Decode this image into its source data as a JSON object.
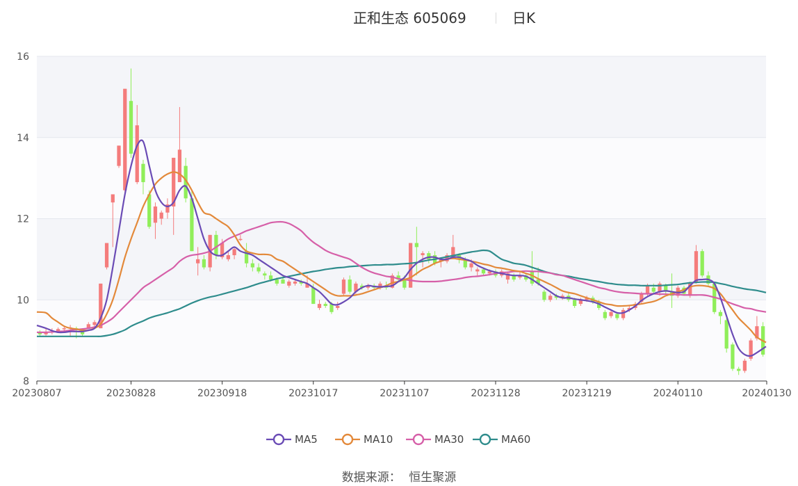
{
  "header": {
    "title": "正和生态 605069",
    "period": "日K"
  },
  "footer": {
    "source_label": "数据来源：",
    "source_value": "恒生聚源"
  },
  "chart_data": {
    "type": "candlestick",
    "title": "正和生态 605069",
    "period": "日K",
    "ylim": [
      8,
      16
    ],
    "yticks": [
      8,
      10,
      12,
      14,
      16
    ],
    "xticks": [
      "20230807",
      "20230828",
      "20230918",
      "20231017",
      "20231107",
      "20231128",
      "20231219",
      "20240110",
      "20240130"
    ],
    "xtick_index": [
      0,
      15,
      30,
      45,
      60,
      75,
      90,
      105,
      119
    ],
    "grid": true,
    "legend_position": "bottom",
    "up_color": "#f47c7c",
    "down_color": "#90ee5a",
    "candles": [
      [
        9.2,
        9.15,
        9.25,
        9.1
      ],
      [
        9.15,
        9.2,
        9.3,
        9.12
      ],
      [
        9.2,
        9.22,
        9.3,
        9.15
      ],
      [
        9.22,
        9.28,
        9.32,
        9.2
      ],
      [
        9.28,
        9.3,
        9.35,
        9.22
      ],
      [
        9.3,
        9.32,
        9.38,
        9.1
      ],
      [
        9.3,
        9.25,
        9.34,
        9.05
      ],
      [
        9.28,
        9.15,
        9.3,
        9.1
      ],
      [
        9.3,
        9.4,
        9.45,
        9.3
      ],
      [
        9.38,
        9.45,
        9.5,
        9.34
      ],
      [
        9.3,
        10.4,
        10.4,
        9.3
      ],
      [
        10.8,
        11.4,
        11.4,
        10.75
      ],
      [
        12.4,
        12.6,
        12.6,
        11.3
      ],
      [
        13.3,
        13.8,
        13.8,
        13.25
      ],
      [
        12.7,
        15.2,
        15.2,
        12.6
      ],
      [
        14.9,
        13.6,
        15.7,
        13.5
      ],
      [
        12.9,
        14.3,
        14.8,
        12.85
      ],
      [
        13.35,
        12.9,
        13.45,
        12.6
      ],
      [
        12.6,
        11.8,
        12.7,
        11.75
      ],
      [
        11.9,
        12.3,
        12.4,
        11.5
      ],
      [
        12.0,
        12.15,
        12.2,
        11.85
      ],
      [
        12.15,
        12.35,
        12.5,
        12.0
      ],
      [
        12.3,
        13.5,
        13.5,
        11.6
      ],
      [
        12.9,
        13.7,
        14.75,
        12.9
      ],
      [
        13.3,
        12.5,
        13.5,
        12.4
      ],
      [
        12.5,
        11.2,
        12.7,
        11.2
      ],
      [
        10.9,
        11.0,
        11.3,
        10.6
      ],
      [
        11.0,
        10.8,
        11.1,
        10.75
      ],
      [
        10.8,
        11.6,
        11.6,
        10.7
      ],
      [
        11.6,
        11.1,
        11.7,
        11.0
      ],
      [
        11.05,
        11.4,
        11.5,
        11.0
      ],
      [
        11.0,
        11.1,
        11.2,
        10.95
      ],
      [
        11.1,
        11.25,
        11.3,
        11.0
      ],
      [
        11.5,
        11.5,
        11.6,
        11.45
      ],
      [
        11.2,
        10.9,
        11.4,
        10.8
      ],
      [
        10.9,
        10.8,
        11.0,
        10.7
      ],
      [
        10.8,
        10.7,
        10.9,
        10.65
      ],
      [
        10.65,
        10.6,
        10.7,
        10.5
      ],
      [
        10.6,
        10.5,
        10.7,
        10.45
      ],
      [
        10.5,
        10.4,
        10.55,
        10.35
      ],
      [
        10.5,
        10.4,
        10.6,
        10.4
      ],
      [
        10.35,
        10.45,
        10.5,
        10.3
      ],
      [
        10.4,
        10.45,
        10.5,
        10.35
      ],
      [
        10.45,
        10.4,
        10.5,
        10.35
      ],
      [
        10.3,
        10.4,
        10.6,
        10.3
      ],
      [
        10.3,
        9.9,
        10.4,
        9.9
      ],
      [
        9.8,
        9.9,
        10.0,
        9.75
      ],
      [
        9.9,
        9.85,
        9.95,
        9.8
      ],
      [
        9.9,
        9.7,
        9.95,
        9.65
      ],
      [
        9.8,
        9.85,
        9.95,
        9.75
      ],
      [
        10.15,
        10.5,
        10.55,
        10.1
      ],
      [
        10.5,
        10.2,
        10.6,
        10.15
      ],
      [
        10.2,
        10.4,
        10.45,
        10.15
      ],
      [
        10.35,
        10.3,
        10.4,
        10.25
      ],
      [
        10.3,
        10.35,
        10.4,
        10.25
      ],
      [
        10.35,
        10.3,
        10.4,
        10.25
      ],
      [
        10.3,
        10.4,
        10.45,
        10.25
      ],
      [
        10.35,
        10.3,
        10.45,
        10.25
      ],
      [
        10.3,
        10.6,
        10.65,
        10.28
      ],
      [
        10.6,
        10.5,
        10.7,
        10.45
      ],
      [
        10.5,
        10.3,
        10.6,
        10.25
      ],
      [
        10.3,
        11.4,
        11.4,
        10.3
      ],
      [
        11.4,
        11.3,
        11.8,
        10.6
      ],
      [
        11.1,
        11.15,
        11.2,
        10.8
      ],
      [
        11.15,
        11.0,
        11.2,
        10.9
      ],
      [
        11.1,
        10.9,
        11.2,
        10.85
      ],
      [
        10.95,
        11.0,
        11.05,
        10.8
      ],
      [
        10.95,
        11.1,
        11.15,
        10.9
      ],
      [
        11.05,
        11.3,
        11.6,
        11.0
      ],
      [
        11.1,
        11.0,
        11.15,
        10.9
      ],
      [
        11.0,
        10.8,
        11.05,
        10.75
      ],
      [
        10.8,
        10.9,
        11.0,
        10.7
      ],
      [
        10.7,
        10.75,
        10.8,
        10.6
      ],
      [
        10.75,
        10.65,
        10.8,
        10.6
      ],
      [
        10.65,
        10.7,
        10.75,
        10.6
      ],
      [
        10.7,
        10.6,
        10.75,
        10.55
      ],
      [
        10.6,
        10.7,
        10.75,
        10.55
      ],
      [
        10.5,
        10.65,
        10.7,
        10.4
      ],
      [
        10.6,
        10.5,
        10.65,
        10.45
      ],
      [
        10.55,
        10.6,
        10.7,
        10.5
      ],
      [
        10.6,
        10.5,
        10.65,
        10.45
      ],
      [
        10.7,
        10.4,
        11.2,
        10.35
      ],
      [
        10.5,
        10.4,
        10.8,
        10.35
      ],
      [
        10.2,
        10.0,
        10.25,
        9.95
      ],
      [
        10.0,
        10.1,
        10.15,
        9.95
      ],
      [
        10.1,
        10.05,
        10.15,
        10.0
      ],
      [
        10.05,
        10.1,
        10.15,
        10.0
      ],
      [
        10.1,
        10.0,
        10.2,
        9.95
      ],
      [
        10.0,
        9.85,
        10.05,
        9.8
      ],
      [
        9.9,
        10.0,
        10.05,
        9.85
      ],
      [
        10.0,
        10.05,
        10.1,
        9.95
      ],
      [
        10.05,
        9.95,
        10.1,
        9.9
      ],
      [
        9.95,
        9.8,
        10.0,
        9.75
      ],
      [
        9.7,
        9.55,
        9.75,
        9.5
      ],
      [
        9.6,
        9.7,
        9.75,
        9.55
      ],
      [
        9.65,
        9.55,
        9.7,
        9.5
      ],
      [
        9.55,
        9.75,
        9.8,
        9.5
      ],
      [
        9.75,
        9.8,
        9.85,
        9.7
      ],
      [
        9.8,
        9.9,
        9.95,
        9.75
      ],
      [
        9.95,
        10.15,
        10.2,
        9.9
      ],
      [
        10.15,
        10.35,
        10.4,
        10.1
      ],
      [
        10.3,
        10.2,
        10.4,
        10.15
      ],
      [
        10.2,
        10.4,
        10.45,
        10.1
      ],
      [
        10.35,
        10.2,
        10.4,
        10.15
      ],
      [
        10.2,
        10.1,
        10.65,
        9.8
      ],
      [
        10.1,
        10.3,
        10.35,
        10.05
      ],
      [
        10.3,
        10.15,
        10.35,
        10.1
      ],
      [
        10.1,
        10.4,
        10.45,
        10.05
      ],
      [
        10.45,
        11.2,
        11.35,
        10.4
      ],
      [
        11.2,
        10.6,
        11.25,
        10.55
      ],
      [
        10.6,
        10.4,
        10.7,
        10.35
      ],
      [
        10.4,
        9.7,
        10.45,
        9.65
      ],
      [
        9.7,
        9.6,
        9.75,
        9.4
      ],
      [
        9.5,
        8.8,
        9.55,
        8.7
      ],
      [
        8.9,
        8.3,
        8.95,
        8.25
      ],
      [
        8.3,
        8.25,
        8.35,
        8.15
      ],
      [
        8.25,
        8.5,
        8.55,
        8.2
      ],
      [
        8.55,
        9.0,
        9.05,
        8.5
      ],
      [
        9.05,
        9.35,
        9.6,
        9.0
      ],
      [
        9.35,
        8.65,
        9.45,
        8.6
      ]
    ],
    "series": [
      {
        "name": "MA5",
        "color": "#6a4bb5",
        "values": [
          9.37,
          9.3,
          9.24,
          9.2,
          9.2,
          9.22,
          9.22,
          9.22,
          9.25,
          9.3,
          9.55,
          10.0,
          10.8,
          11.7,
          12.6,
          13.3,
          13.8,
          13.9,
          13.3,
          12.7,
          12.4,
          12.3,
          12.4,
          12.7,
          12.8,
          12.5,
          12.0,
          11.5,
          11.2,
          11.1,
          11.1,
          11.2,
          11.3,
          11.2,
          11.15,
          11.1,
          11.0,
          10.9,
          10.8,
          10.7,
          10.6,
          10.55,
          10.5,
          10.45,
          10.4,
          10.3,
          10.2,
          10.05,
          9.9,
          9.88,
          9.95,
          10.05,
          10.2,
          10.3,
          10.35,
          10.33,
          10.32,
          10.33,
          10.35,
          10.45,
          10.55,
          10.75,
          10.9,
          11.0,
          11.05,
          11.05,
          11.0,
          11.0,
          11.05,
          11.05,
          11.0,
          10.95,
          10.85,
          10.78,
          10.72,
          10.68,
          10.65,
          10.62,
          10.6,
          10.6,
          10.58,
          10.5,
          10.4,
          10.3,
          10.2,
          10.1,
          10.05,
          10.05,
          10.02,
          10.0,
          9.98,
          9.95,
          9.9,
          9.82,
          9.75,
          9.68,
          9.68,
          9.75,
          9.85,
          9.98,
          10.08,
          10.15,
          10.2,
          10.22,
          10.2,
          10.18,
          10.2,
          10.35,
          10.48,
          10.5,
          10.5,
          10.4,
          10.05,
          9.6,
          9.15,
          8.8,
          8.65,
          8.62,
          8.7,
          8.85
        ]
      },
      {
        "name": "MA10",
        "color": "#e3893a",
        "values": [
          9.7,
          9.68,
          9.55,
          9.45,
          9.35,
          9.3,
          9.28,
          9.25,
          9.25,
          9.3,
          9.4,
          9.65,
          10.0,
          10.5,
          11.05,
          11.5,
          11.9,
          12.3,
          12.6,
          12.85,
          13.0,
          13.1,
          13.15,
          13.1,
          12.95,
          12.7,
          12.4,
          12.15,
          12.1,
          12.0,
          11.9,
          11.8,
          11.6,
          11.35,
          11.2,
          11.15,
          11.12,
          11.12,
          11.1,
          11.0,
          10.95,
          10.85,
          10.75,
          10.65,
          10.55,
          10.45,
          10.35,
          10.25,
          10.15,
          10.1,
          10.1,
          10.1,
          10.12,
          10.15,
          10.2,
          10.25,
          10.3,
          10.35,
          10.42,
          10.45,
          10.5,
          10.55,
          10.65,
          10.75,
          10.82,
          10.9,
          10.95,
          11.0,
          11.02,
          11.0,
          10.98,
          10.95,
          10.92,
          10.88,
          10.85,
          10.8,
          10.78,
          10.75,
          10.72,
          10.7,
          10.65,
          10.6,
          10.52,
          10.45,
          10.38,
          10.3,
          10.22,
          10.18,
          10.15,
          10.1,
          10.05,
          10.0,
          9.95,
          9.9,
          9.88,
          9.85,
          9.85,
          9.86,
          9.88,
          9.9,
          9.93,
          9.96,
          10.02,
          10.1,
          10.15,
          10.2,
          10.25,
          10.32,
          10.35,
          10.35,
          10.33,
          10.28,
          10.15,
          9.95,
          9.75,
          9.55,
          9.4,
          9.25,
          9.08,
          8.95
        ]
      },
      {
        "name": "MA30",
        "color": "#d65fa8",
        "values": [
          9.2,
          9.2,
          9.21,
          9.22,
          9.23,
          9.25,
          9.27,
          9.28,
          9.3,
          9.33,
          9.37,
          9.45,
          9.55,
          9.7,
          9.85,
          10.0,
          10.15,
          10.3,
          10.4,
          10.5,
          10.6,
          10.7,
          10.8,
          10.95,
          11.05,
          11.1,
          11.12,
          11.15,
          11.2,
          11.3,
          11.4,
          11.5,
          11.57,
          11.63,
          11.7,
          11.75,
          11.8,
          11.85,
          11.9,
          11.92,
          11.92,
          11.88,
          11.8,
          11.7,
          11.55,
          11.42,
          11.32,
          11.22,
          11.15,
          11.1,
          11.05,
          11.0,
          10.9,
          10.8,
          10.72,
          10.66,
          10.62,
          10.58,
          10.56,
          10.52,
          10.5,
          10.48,
          10.46,
          10.45,
          10.45,
          10.45,
          10.46,
          10.48,
          10.5,
          10.52,
          10.55,
          10.57,
          10.58,
          10.6,
          10.62,
          10.65,
          10.67,
          10.68,
          10.7,
          10.7,
          10.71,
          10.7,
          10.7,
          10.68,
          10.66,
          10.62,
          10.6,
          10.55,
          10.5,
          10.45,
          10.4,
          10.35,
          10.3,
          10.27,
          10.23,
          10.2,
          10.18,
          10.17,
          10.16,
          10.15,
          10.15,
          10.15,
          10.14,
          10.14,
          10.13,
          10.13,
          10.12,
          10.12,
          10.12,
          10.12,
          10.1,
          10.06,
          10.02,
          9.96,
          9.9,
          9.85,
          9.8,
          9.78,
          9.74,
          9.7
        ]
      },
      {
        "name": "MA60",
        "color": "#2e8c8c",
        "values": [
          9.1,
          9.1,
          9.1,
          9.1,
          9.1,
          9.1,
          9.1,
          9.1,
          9.1,
          9.1,
          9.1,
          9.12,
          9.15,
          9.2,
          9.26,
          9.35,
          9.42,
          9.48,
          9.55,
          9.6,
          9.64,
          9.68,
          9.73,
          9.78,
          9.85,
          9.92,
          9.98,
          10.03,
          10.07,
          10.1,
          10.14,
          10.18,
          10.22,
          10.26,
          10.3,
          10.35,
          10.4,
          10.44,
          10.48,
          10.52,
          10.55,
          10.58,
          10.61,
          10.64,
          10.67,
          10.7,
          10.72,
          10.75,
          10.77,
          10.79,
          10.8,
          10.82,
          10.83,
          10.84,
          10.85,
          10.86,
          10.86,
          10.87,
          10.87,
          10.88,
          10.89,
          10.9,
          10.92,
          10.95,
          10.98,
          11.0,
          11.03,
          11.06,
          11.09,
          11.12,
          11.15,
          11.18,
          11.2,
          11.22,
          11.2,
          11.1,
          11.0,
          10.95,
          10.9,
          10.88,
          10.85,
          10.8,
          10.75,
          10.7,
          10.66,
          10.63,
          10.6,
          10.58,
          10.55,
          10.52,
          10.5,
          10.47,
          10.45,
          10.42,
          10.4,
          10.38,
          10.37,
          10.36,
          10.36,
          10.35,
          10.35,
          10.35,
          10.35,
          10.36,
          10.37,
          10.38,
          10.4,
          10.42,
          10.43,
          10.44,
          10.44,
          10.43,
          10.4,
          10.37,
          10.33,
          10.3,
          10.27,
          10.25,
          10.23,
          10.18
        ]
      }
    ]
  }
}
